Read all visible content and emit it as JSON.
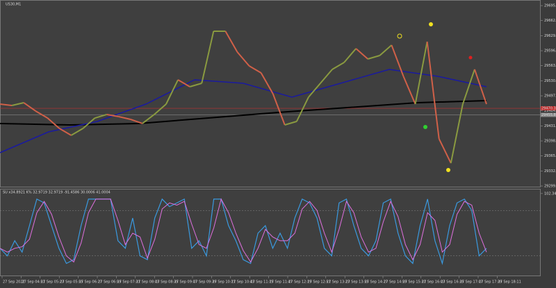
{
  "main_chart": {
    "symbol": "US30,M1",
    "ylim": [
      29296.7,
      29708
    ],
    "yticks": [
      {
        "value": 29695.7,
        "label": "29695.70"
      },
      {
        "value": 29662.7,
        "label": "29662.70"
      },
      {
        "value": 29629.7,
        "label": "29629.70"
      },
      {
        "value": 29596.7,
        "label": "29596.70"
      },
      {
        "value": 29563.7,
        "label": "29563.70"
      },
      {
        "value": 29530.7,
        "label": "29530.70"
      },
      {
        "value": 29497.7,
        "label": "29497.70"
      },
      {
        "value": 29464.7,
        "label": "29464.70"
      },
      {
        "value": 29431.7,
        "label": "29431.70"
      },
      {
        "value": 29398.7,
        "label": "29398.70"
      },
      {
        "value": 29365.7,
        "label": "29365.70"
      },
      {
        "value": 29332.7,
        "label": "29332.70"
      },
      {
        "value": 29299.7,
        "label": "29299.70"
      }
    ],
    "bid": {
      "value": 29470.3,
      "label": "29470.30"
    },
    "ask": {
      "value": 29455.8,
      "label": "29455.80"
    },
    "close": [
      29479.5,
      29476.5,
      29482.6,
      29464.3,
      29449.0,
      29426.2,
      29411.0,
      29426.2,
      29449.0,
      29456.7,
      29452.1,
      29446.0,
      29436.9,
      29456.7,
      29479.5,
      29532.8,
      29517.6,
      29525.2,
      29639.5,
      29639.5,
      29593.7,
      29563.3,
      29548.1,
      29502.4,
      29433.8,
      29441.4,
      29494.7,
      29525.2,
      29555.7,
      29570.9,
      29601.4,
      29578.5,
      29586.1,
      29609.0,
      29540.4,
      29479.5,
      29616.6,
      29403.3,
      29350.0,
      29479.5,
      29555.7,
      29479.5
    ],
    "ma_slow": [
      29372.9,
      29418.6,
      29441.4,
      29479.5,
      29532.8,
      29525.2,
      29494.7,
      29525.2,
      29555.7,
      29540.4,
      29517.6
    ],
    "ma_long": [
      29436.9,
      29433.8,
      29436.9,
      29449.0,
      29461.2,
      29471.9,
      29482.5,
      29487.1
    ]
  },
  "indicator": {
    "label": "SU x34.8921 K% 32.9719 32.9719 -91.4586 30.0006 41.0004",
    "ylim": [
      -5,
      105
    ],
    "yticks": [
      102.3439
    ],
    "levels": [
      80,
      20
    ],
    "main": [
      30,
      20,
      40,
      25,
      60,
      95,
      90,
      60,
      30,
      10,
      15,
      60,
      95,
      95,
      95,
      95,
      40,
      30,
      70,
      20,
      15,
      70,
      95,
      85,
      90,
      95,
      30,
      40,
      20,
      95,
      95,
      60,
      40,
      15,
      10,
      50,
      60,
      30,
      50,
      30,
      70,
      95,
      90,
      70,
      30,
      20,
      90,
      95,
      60,
      30,
      20,
      40,
      90,
      95,
      50,
      20,
      10,
      60,
      95,
      40,
      10,
      60,
      90,
      95,
      80,
      20,
      30
    ],
    "signal": [
      30,
      25,
      30,
      32,
      42,
      77,
      92,
      75,
      45,
      20,
      12,
      37,
      77,
      95,
      95,
      95,
      67,
      35,
      50,
      45,
      17,
      42,
      82,
      90,
      87,
      92,
      62,
      35,
      30,
      57,
      95,
      77,
      50,
      27,
      12,
      30,
      55,
      45,
      40,
      40,
      50,
      82,
      92,
      80,
      50,
      25,
      55,
      92,
      77,
      45,
      25,
      30,
      65,
      92,
      72,
      35,
      15,
      35,
      77,
      67,
      25,
      35,
      75,
      92,
      87,
      50,
      25
    ]
  },
  "time_axis": [
    "27 Sep 2022",
    "27 Sep 04:51",
    "27 Sep 05:23",
    "27 Sep 05:55",
    "27 Sep 06:27",
    "27 Sep 06:59",
    "27 Sep 07:31",
    "27 Sep 08:03",
    "27 Sep 08:35",
    "27 Sep 09:07",
    "27 Sep 09:39",
    "27 Sep 10:11",
    "27 Sep 10:43",
    "27 Sep 11:15",
    "27 Sep 11:47",
    "27 Sep 12:19",
    "27 Sep 12:51",
    "27 Sep 13:23",
    "27 Sep 13:55",
    "27 Sep 14:27",
    "27 Sep 14:59",
    "27 Sep 15:31",
    "27 Sep 16:03",
    "27 Sep 16:35",
    "27 Sep 17:07",
    "27 Sep 17:39",
    "27 Sep 18:11"
  ]
}
